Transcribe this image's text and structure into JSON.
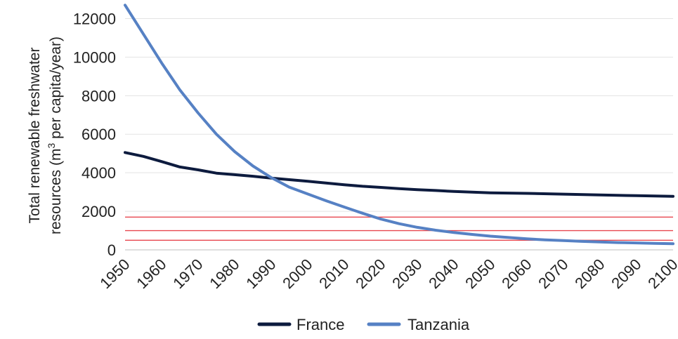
{
  "chart_data": {
    "type": "line",
    "ylabel_line1": "Total renewable freshwater",
    "ylabel_line2_pre": "resources (m",
    "ylabel_line2_sup": "3",
    "ylabel_line2_post": " per capita/year)",
    "ylim": [
      0,
      12600
    ],
    "xlim": [
      1950,
      2100
    ],
    "y_ticks": [
      "0",
      "2000",
      "4000",
      "6000",
      "8000",
      "10000",
      "12000"
    ],
    "x_ticks": [
      "1950",
      "1960",
      "1970",
      "1980",
      "1990",
      "2000",
      "2010",
      "2020",
      "2030",
      "2040",
      "2050",
      "2060",
      "2070",
      "2080",
      "2090",
      "2100"
    ],
    "grid": true,
    "legend_position": "bottom",
    "series": [
      {
        "name": "France",
        "color": "#0d1b3e",
        "points": [
          [
            1950,
            5050
          ],
          [
            1955,
            4850
          ],
          [
            1960,
            4580
          ],
          [
            1965,
            4300
          ],
          [
            1970,
            4150
          ],
          [
            1975,
            3980
          ],
          [
            1980,
            3900
          ],
          [
            1985,
            3820
          ],
          [
            1990,
            3720
          ],
          [
            1995,
            3640
          ],
          [
            2000,
            3560
          ],
          [
            2005,
            3470
          ],
          [
            2010,
            3380
          ],
          [
            2015,
            3300
          ],
          [
            2020,
            3240
          ],
          [
            2025,
            3180
          ],
          [
            2030,
            3120
          ],
          [
            2035,
            3080
          ],
          [
            2040,
            3030
          ],
          [
            2050,
            2960
          ],
          [
            2060,
            2930
          ],
          [
            2070,
            2890
          ],
          [
            2080,
            2850
          ],
          [
            2090,
            2810
          ],
          [
            2100,
            2780
          ]
        ]
      },
      {
        "name": "Tanzania",
        "color": "#5681c4",
        "points": [
          [
            1950,
            12700
          ],
          [
            1955,
            11200
          ],
          [
            1960,
            9700
          ],
          [
            1965,
            8300
          ],
          [
            1970,
            7100
          ],
          [
            1975,
            6000
          ],
          [
            1980,
            5100
          ],
          [
            1985,
            4350
          ],
          [
            1990,
            3750
          ],
          [
            1995,
            3250
          ],
          [
            2000,
            2900
          ],
          [
            2005,
            2550
          ],
          [
            2010,
            2220
          ],
          [
            2015,
            1900
          ],
          [
            2020,
            1600
          ],
          [
            2025,
            1360
          ],
          [
            2030,
            1170
          ],
          [
            2035,
            1020
          ],
          [
            2040,
            900
          ],
          [
            2045,
            800
          ],
          [
            2050,
            710
          ],
          [
            2055,
            640
          ],
          [
            2060,
            570
          ],
          [
            2065,
            520
          ],
          [
            2070,
            480
          ],
          [
            2075,
            440
          ],
          [
            2080,
            410
          ],
          [
            2085,
            380
          ],
          [
            2090,
            360
          ],
          [
            2095,
            340
          ],
          [
            2100,
            320
          ]
        ]
      }
    ],
    "threshold_lines": {
      "color": "#e8474f",
      "values": [
        1700,
        1000,
        500
      ]
    }
  }
}
